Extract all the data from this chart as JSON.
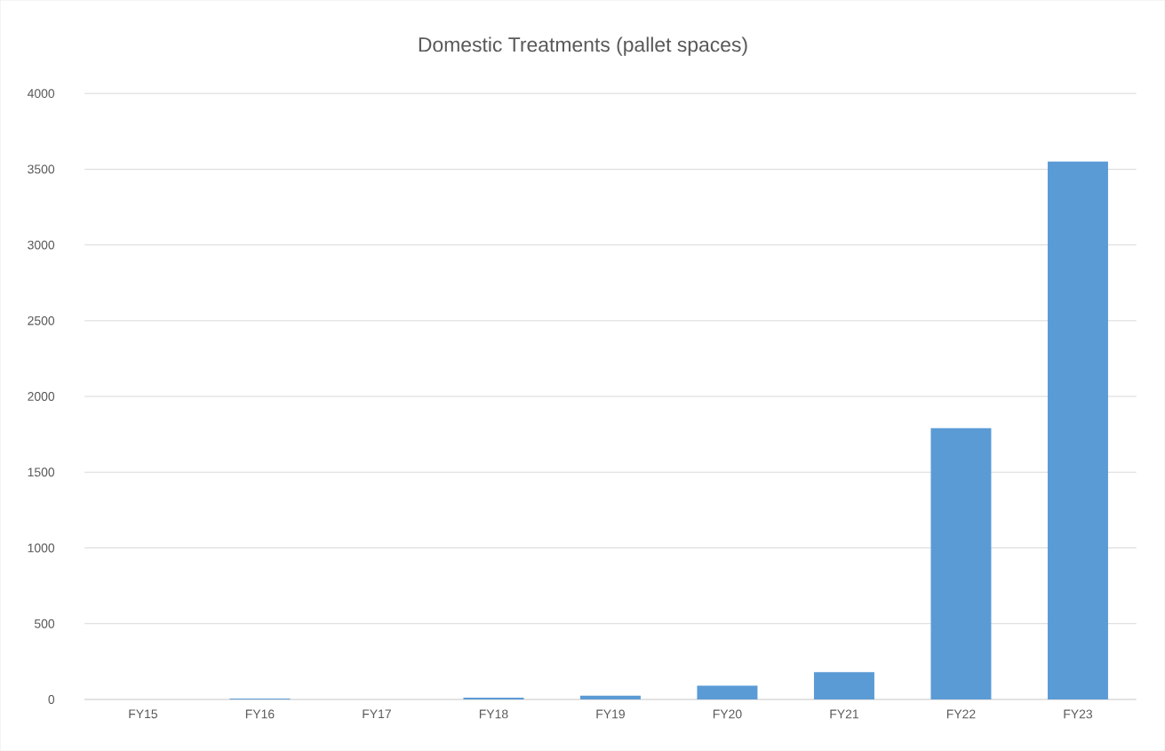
{
  "chart_data": {
    "type": "bar",
    "title": "Domestic Treatments (pallet spaces)",
    "categories": [
      "FY15",
      "FY16",
      "FY17",
      "FY18",
      "FY19",
      "FY20",
      "FY21",
      "FY22",
      "FY23"
    ],
    "values": [
      0,
      5,
      0,
      12,
      25,
      90,
      180,
      1790,
      3550
    ],
    "color": "#5b9bd5",
    "ylim": [
      0,
      4000
    ],
    "yticks": [
      0,
      500,
      1000,
      1500,
      2000,
      2500,
      3000,
      3500,
      4000
    ],
    "grid": "y"
  }
}
